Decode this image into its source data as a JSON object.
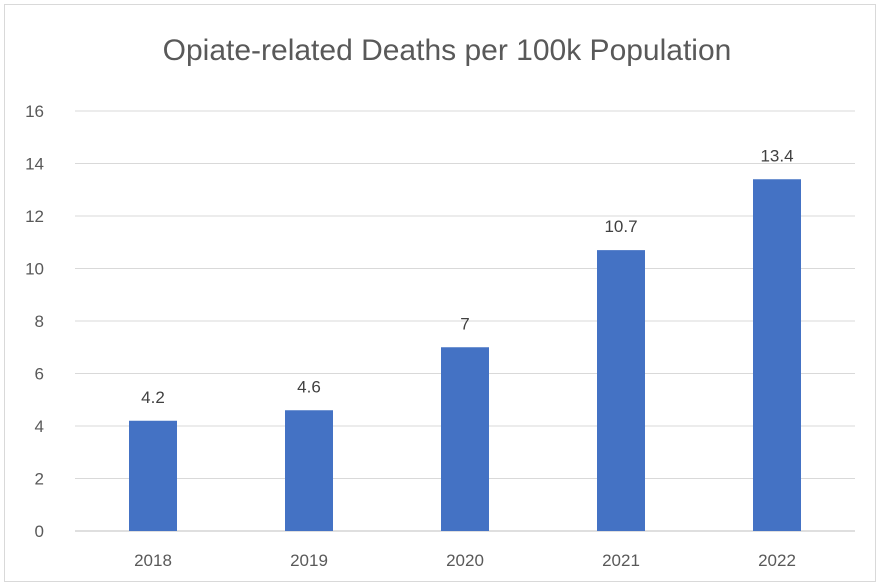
{
  "chart_data": {
    "type": "bar",
    "title": "Opiate-related Deaths per 100k Population",
    "categories": [
      "2018",
      "2019",
      "2020",
      "2021",
      "2022"
    ],
    "values": [
      4.2,
      4.6,
      7,
      10.7,
      13.4
    ],
    "data_labels": [
      "4.2",
      "4.6",
      "7",
      "10.7",
      "13.4"
    ],
    "xlabel": "",
    "ylabel": "",
    "ylim": [
      0,
      16
    ],
    "yticks": [
      0,
      2,
      4,
      6,
      8,
      10,
      12,
      14,
      16
    ],
    "grid": true,
    "legend": "none",
    "bar_color": "#4472c4"
  }
}
